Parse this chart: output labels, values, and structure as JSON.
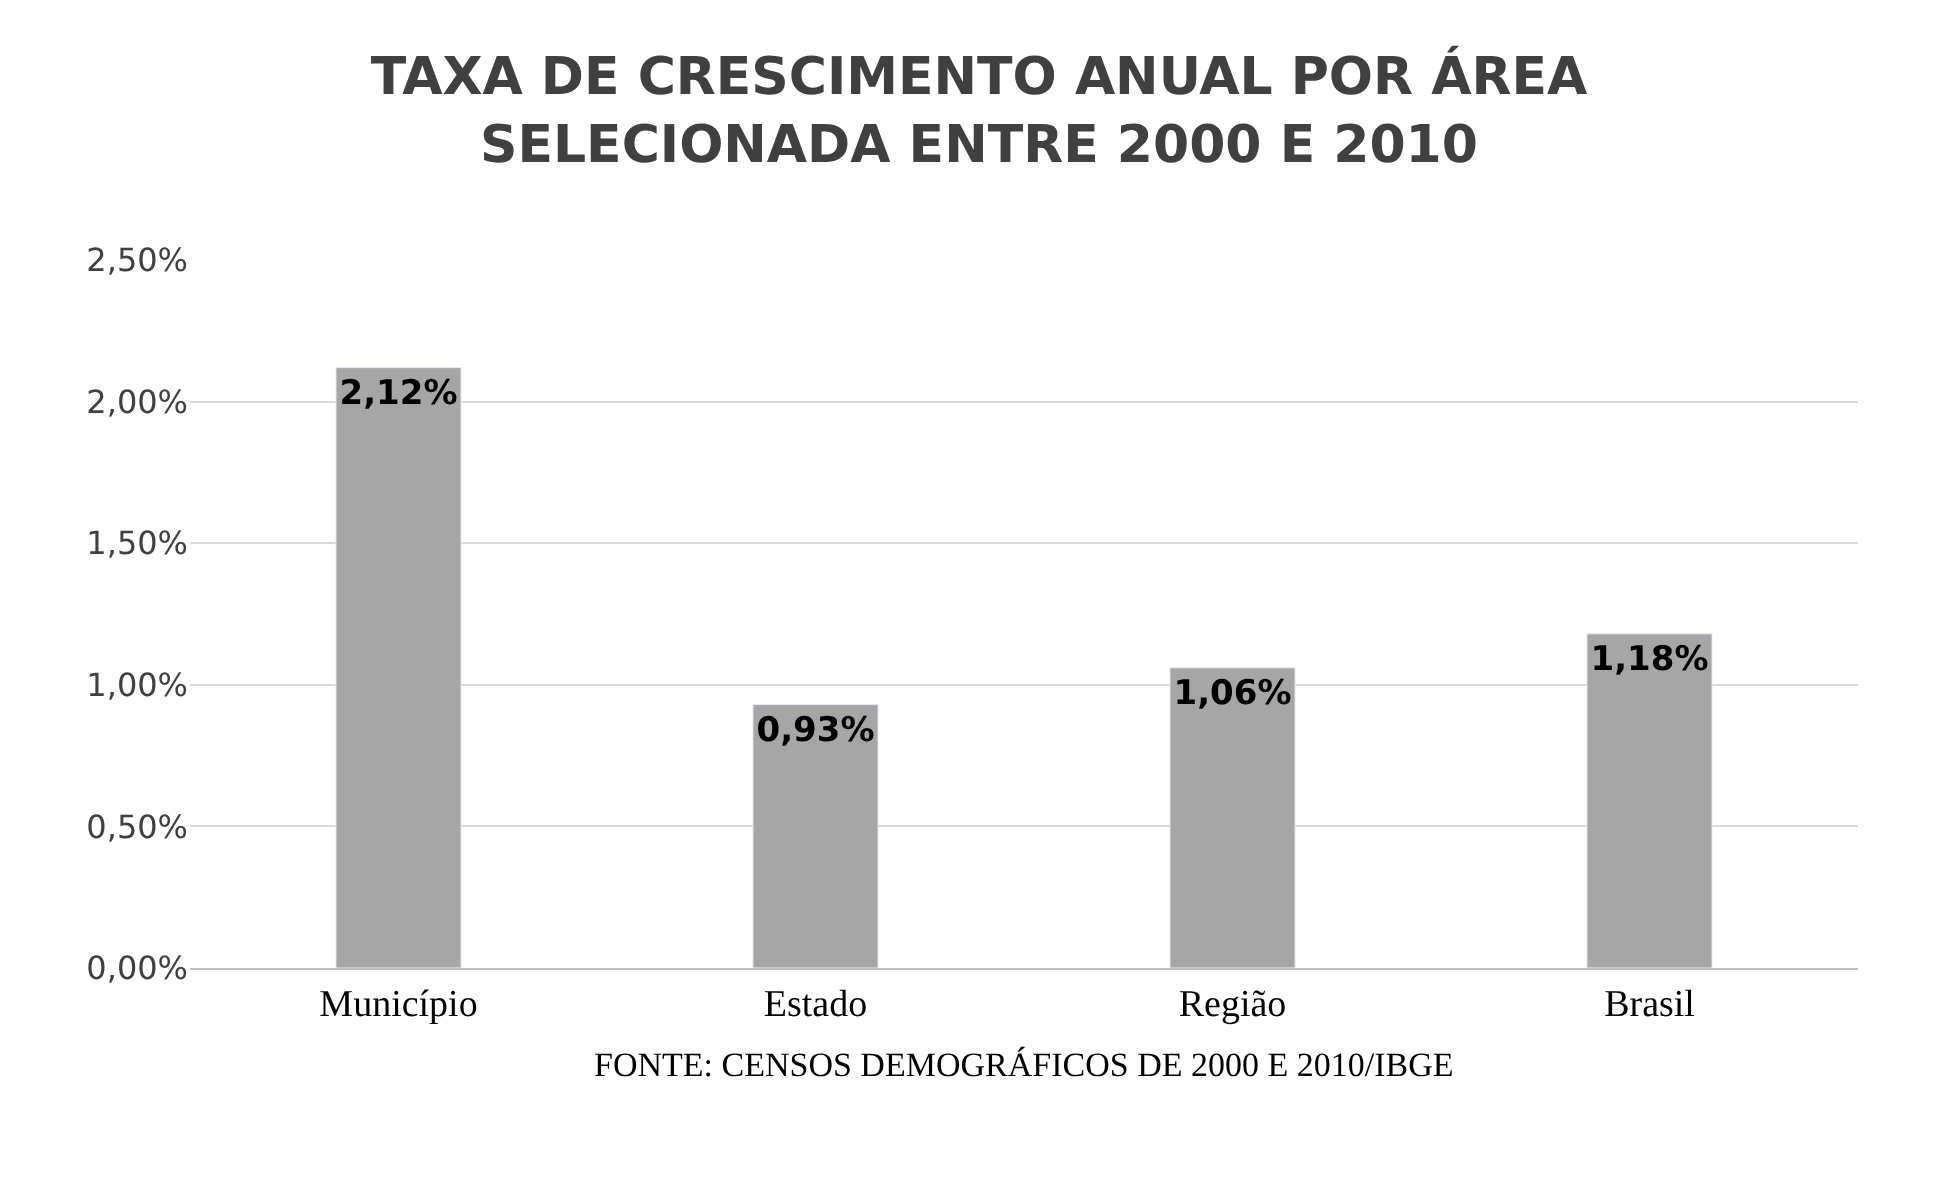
{
  "chart_data": {
    "type": "bar",
    "title": "TAXA DE CRESCIMENTO ANUAL POR ÁREA\nSELECIONADA ENTRE 2000 E 2010",
    "categories": [
      "Município",
      "Estado",
      "Região",
      "Brasil"
    ],
    "values": [
      2.12,
      0.93,
      1.06,
      1.18
    ],
    "color": "#a6a6a6",
    "value_labels": [
      "2,12%",
      "0,93%",
      "1,06%",
      "1,18%"
    ],
    "ylim": [
      0,
      2.5
    ],
    "yticks": [
      {
        "value": 0,
        "label": "0,00%"
      },
      {
        "value": 0.5,
        "label": "0,50%"
      },
      {
        "value": 1,
        "label": "1,00%"
      },
      {
        "value": 1.5,
        "label": "1,50%"
      },
      {
        "value": 2,
        "label": "2,00%"
      },
      {
        "value": 2.5,
        "label": "2,50%"
      }
    ],
    "grid": "y",
    "annotations": [
      "FONTE: CENSOS DEMOGRÁFICOS DE 2000 E 2010/IBGE"
    ]
  }
}
